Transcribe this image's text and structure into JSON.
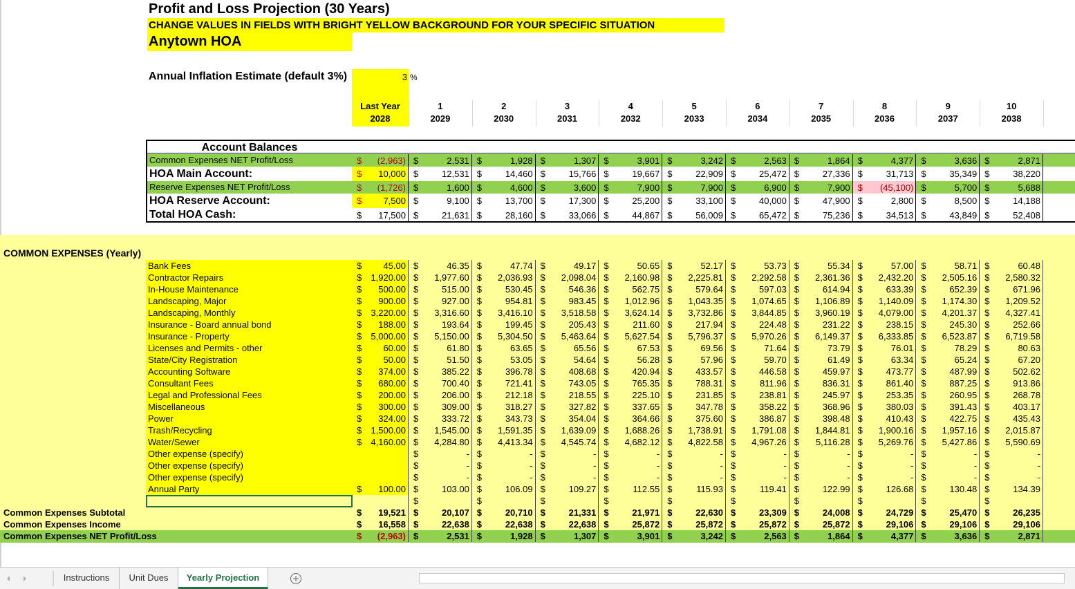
{
  "title": "Profit and Loss Projection (30 Years)",
  "instruction": "CHANGE VALUES IN FIELDS WITH BRIGHT YELLOW BACKGROUND FOR YOUR SPECIFIC SITUATION",
  "hoa_name": "Anytown HOA",
  "inflation": {
    "label": "Annual Inflation Estimate (default 3%)",
    "value": 3,
    "unit": "%"
  },
  "currency": "$",
  "columns": [
    {
      "period": "Last Year",
      "year": "2028"
    },
    {
      "period": "1",
      "year": "2029"
    },
    {
      "period": "2",
      "year": "2030"
    },
    {
      "period": "3",
      "year": "2031"
    },
    {
      "period": "4",
      "year": "2032"
    },
    {
      "period": "5",
      "year": "2033"
    },
    {
      "period": "6",
      "year": "2034"
    },
    {
      "period": "7",
      "year": "2035"
    },
    {
      "period": "8",
      "year": "2036"
    },
    {
      "period": "9",
      "year": "2037"
    },
    {
      "period": "10",
      "year": "2038"
    }
  ],
  "account_balances": {
    "title": "Account Balances",
    "rows": [
      {
        "label": "Common Expenses NET Profit/Loss",
        "values": [
          "(2,963)",
          "2,531",
          "1,928",
          "1,307",
          "3,901",
          "3,242",
          "2,563",
          "1,864",
          "4,377",
          "3,636",
          "2,871"
        ]
      },
      {
        "label": "HOA Main Account:",
        "values": [
          "10,000",
          "12,531",
          "14,460",
          "15,766",
          "19,667",
          "22,909",
          "25,472",
          "27,336",
          "31,713",
          "35,349",
          "38,220"
        ]
      },
      {
        "label": "Reserve Expenses NET Profit/Loss",
        "values": [
          "(1,726)",
          "1,600",
          "4,600",
          "3,600",
          "7,900",
          "7,900",
          "6,900",
          "7,900",
          "(45,100)",
          "5,700",
          "5,688"
        ]
      },
      {
        "label": "HOA Reserve Account:",
        "values": [
          "7,500",
          "9,100",
          "13,700",
          "17,300",
          "25,200",
          "33,100",
          "40,000",
          "47,900",
          "2,800",
          "8,500",
          "14,188"
        ]
      },
      {
        "label": "Total HOA Cash:",
        "values": [
          "17,500",
          "21,631",
          "28,160",
          "33,066",
          "44,867",
          "56,009",
          "65,472",
          "75,236",
          "34,513",
          "43,849",
          "52,408"
        ]
      }
    ]
  },
  "common_expenses": {
    "title": "COMMON EXPENSES (Yearly)",
    "rows": [
      {
        "label": "Bank Fees",
        "values": [
          "45.00",
          "46.35",
          "47.74",
          "49.17",
          "50.65",
          "52.17",
          "53.73",
          "55.34",
          "57.00",
          "58.71",
          "60.48"
        ]
      },
      {
        "label": "Contractor Repairs",
        "values": [
          "1,920.00",
          "1,977.60",
          "2,036.93",
          "2,098.04",
          "2,160.98",
          "2,225.81",
          "2,292.58",
          "2,361.36",
          "2,432.20",
          "2,505.16",
          "2,580.32"
        ]
      },
      {
        "label": "In-House Maintenance",
        "values": [
          "500.00",
          "515.00",
          "530.45",
          "546.36",
          "562.75",
          "579.64",
          "597.03",
          "614.94",
          "633.39",
          "652.39",
          "671.96"
        ]
      },
      {
        "label": "Landscaping, Major",
        "values": [
          "900.00",
          "927.00",
          "954.81",
          "983.45",
          "1,012.96",
          "1,043.35",
          "1,074.65",
          "1,106.89",
          "1,140.09",
          "1,174.30",
          "1,209.52"
        ]
      },
      {
        "label": "Landscaping, Monthly",
        "values": [
          "3,220.00",
          "3,316.60",
          "3,416.10",
          "3,518.58",
          "3,624.14",
          "3,732.86",
          "3,844.85",
          "3,960.19",
          "4,079.00",
          "4,201.37",
          "4,327.41"
        ]
      },
      {
        "label": "Insurance - Board annual bond",
        "values": [
          "188.00",
          "193.64",
          "199.45",
          "205.43",
          "211.60",
          "217.94",
          "224.48",
          "231.22",
          "238.15",
          "245.30",
          "252.66"
        ]
      },
      {
        "label": "Insurance - Property",
        "values": [
          "5,000.00",
          "5,150.00",
          "5,304.50",
          "5,463.64",
          "5,627.54",
          "5,796.37",
          "5,970.26",
          "6,149.37",
          "6,333.85",
          "6,523.87",
          "6,719.58"
        ]
      },
      {
        "label": "Licenses and Permits - other",
        "values": [
          "60.00",
          "61.80",
          "63.65",
          "65.56",
          "67.53",
          "69.56",
          "71.64",
          "73.79",
          "76.01",
          "78.29",
          "80.63"
        ]
      },
      {
        "label": "State/City Registration",
        "values": [
          "50.00",
          "51.50",
          "53.05",
          "54.64",
          "56.28",
          "57.96",
          "59.70",
          "61.49",
          "63.34",
          "65.24",
          "67.20"
        ]
      },
      {
        "label": "Accounting Software",
        "values": [
          "374.00",
          "385.22",
          "396.78",
          "408.68",
          "420.94",
          "433.57",
          "446.58",
          "459.97",
          "473.77",
          "487.99",
          "502.62"
        ]
      },
      {
        "label": "Consultant Fees",
        "values": [
          "680.00",
          "700.40",
          "721.41",
          "743.05",
          "765.35",
          "788.31",
          "811.96",
          "836.31",
          "861.40",
          "887.25",
          "913.86"
        ]
      },
      {
        "label": "Legal and Professional Fees",
        "values": [
          "200.00",
          "206.00",
          "212.18",
          "218.55",
          "225.10",
          "231.85",
          "238.81",
          "245.97",
          "253.35",
          "260.95",
          "268.78"
        ]
      },
      {
        "label": "Miscellaneous",
        "values": [
          "300.00",
          "309.00",
          "318.27",
          "327.82",
          "337.65",
          "347.78",
          "358.22",
          "368.96",
          "380.03",
          "391.43",
          "403.17"
        ]
      },
      {
        "label": "Power",
        "values": [
          "324.00",
          "333.72",
          "343.73",
          "354.04",
          "364.66",
          "375.60",
          "386.87",
          "398.48",
          "410.43",
          "422.75",
          "435.43"
        ]
      },
      {
        "label": "Trash/Recycling",
        "values": [
          "1,500.00",
          "1,545.00",
          "1,591.35",
          "1,639.09",
          "1,688.26",
          "1,738.91",
          "1,791.08",
          "1,844.81",
          "1,900.16",
          "1,957.16",
          "2,015.87"
        ]
      },
      {
        "label": "Water/Sewer",
        "values": [
          "4,160.00",
          "4,284.80",
          "4,413.34",
          "4,545.74",
          "4,682.12",
          "4,822.58",
          "4,967.26",
          "5,116.28",
          "5,269.76",
          "5,427.86",
          "5,590.69"
        ]
      },
      {
        "label": "Other expense (specify)",
        "values": [
          null,
          "-",
          "-",
          "-",
          "-",
          "-",
          "-",
          "-",
          "-",
          "-",
          "-"
        ]
      },
      {
        "label": "Other expense (specify)",
        "values": [
          null,
          "-",
          "-",
          "-",
          "-",
          "-",
          "-",
          "-",
          "-",
          "-",
          "-"
        ]
      },
      {
        "label": "Other expense (specify)",
        "values": [
          null,
          "-",
          "-",
          "-",
          "-",
          "-",
          "-",
          "-",
          "-",
          "-",
          "-"
        ]
      },
      {
        "label": "Annual Party",
        "values": [
          "100.00",
          "103.00",
          "106.09",
          "109.27",
          "112.55",
          "115.93",
          "119.41",
          "122.99",
          "126.68",
          "130.48",
          "134.39"
        ]
      }
    ]
  },
  "totals": {
    "rows": [
      {
        "label": "Common Expenses Subtotal",
        "values": [
          "19,521",
          "20,107",
          "20,710",
          "21,331",
          "21,971",
          "22,630",
          "23,309",
          "24,008",
          "24,729",
          "25,470",
          "26,235"
        ]
      },
      {
        "label": "Common Expenses Income",
        "values": [
          "16,558",
          "22,638",
          "22,638",
          "22,638",
          "25,872",
          "25,872",
          "25,872",
          "25,872",
          "29,106",
          "29,106",
          "29,106"
        ]
      },
      {
        "label": "Common Expenses NET Profit/Loss",
        "values": [
          "(2,963)",
          "2,531",
          "1,928",
          "1,307",
          "3,901",
          "3,242",
          "2,563",
          "1,864",
          "4,377",
          "3,636",
          "2,871"
        ]
      }
    ]
  },
  "tabs": [
    "Instructions",
    "Unit Dues",
    "Yearly Projection"
  ],
  "active_tab": 2
}
